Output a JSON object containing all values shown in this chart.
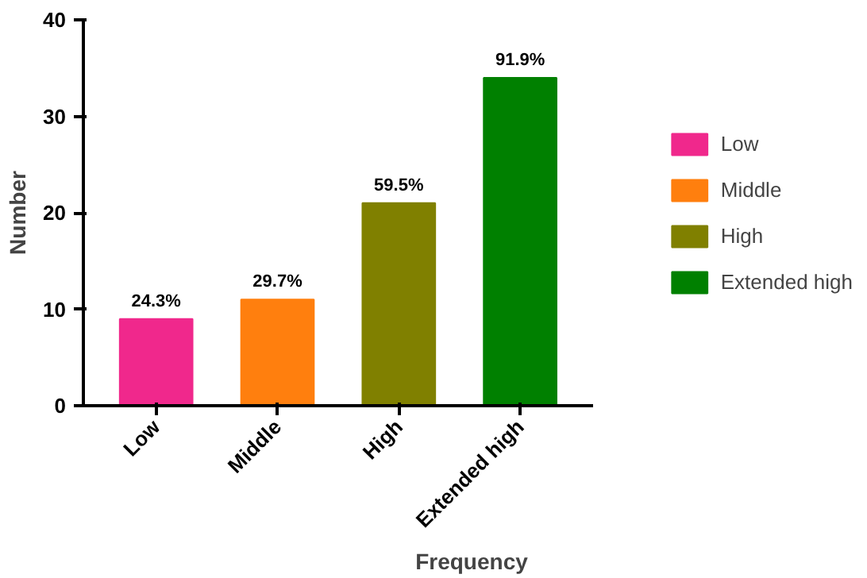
{
  "chart_data": {
    "type": "bar",
    "categories": [
      "Low",
      "Middle",
      "High",
      "Extended high"
    ],
    "series": [
      {
        "name": "Low",
        "color": "#f0288c",
        "values": [
          9,
          null,
          null,
          null
        ]
      },
      {
        "name": "Middle",
        "color": "#ff7f0e",
        "values": [
          null,
          11,
          null,
          null
        ]
      },
      {
        "name": "High",
        "color": "#808000",
        "values": [
          null,
          null,
          21,
          null
        ]
      },
      {
        "name": "Extended high",
        "color": "#008000",
        "values": [
          null,
          null,
          null,
          34
        ]
      }
    ],
    "annotations": [
      {
        "text": "24.3%",
        "x": "Low",
        "y": 9
      },
      {
        "text": "29.7%",
        "x": "Middle",
        "y": 11
      },
      {
        "text": "59.5%",
        "x": "High",
        "y": 21
      },
      {
        "text": "91.9%",
        "x": "Extended high",
        "y": 34
      }
    ],
    "xlabel": "Frequency",
    "ylabel": "Number",
    "ylim": [
      0,
      40
    ],
    "yticks": [
      0,
      10,
      20,
      30,
      40
    ],
    "grid": false,
    "legend": "right"
  }
}
